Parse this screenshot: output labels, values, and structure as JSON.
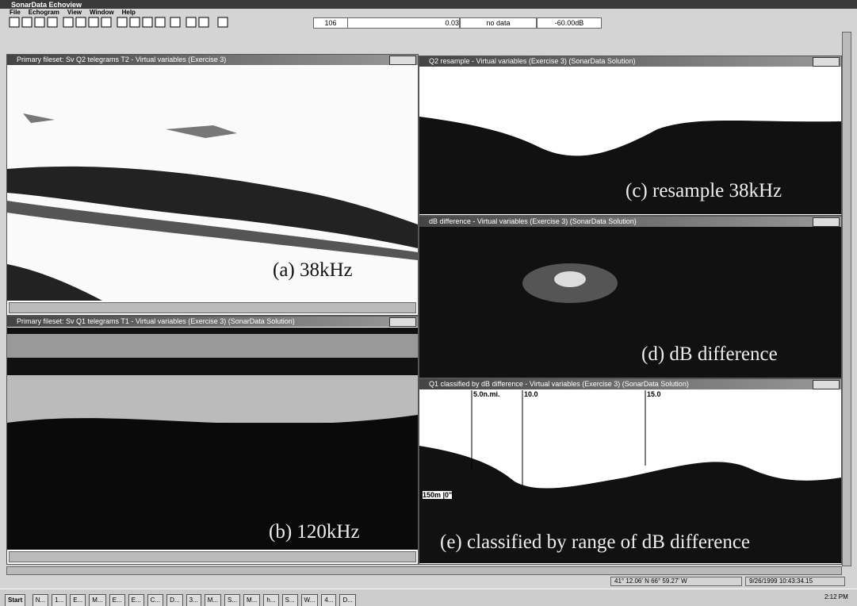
{
  "app": {
    "title": "SonarData Echoview",
    "menu": [
      "File",
      "Echogram",
      "View",
      "Window",
      "Help"
    ],
    "toolbar_fields": [
      "106",
      "0.03",
      "no data",
      "-60.00dB"
    ]
  },
  "windows": [
    {
      "title": "Primary fileset: Sv Q2 telegrams T2 - Virtual variables (Exercise 3)",
      "label": "(a) 38kHz"
    },
    {
      "title": "Primary fileset: Sv Q1 telegrams T1 - Virtual variables (Exercise 3) (SonarData Solution)",
      "label": "(b) 120kHz"
    },
    {
      "title": "Q2 resample - Virtual variables (Exercise 3) (SonarData Solution)",
      "label": "(c) resample 38kHz"
    },
    {
      "title": "dB difference - Virtual variables (Exercise 3) (SonarData Solution)",
      "label": "(d) dB difference"
    },
    {
      "title": "Q1 classified by dB difference - Virtual variables (Exercise 3) (SonarData Solution)",
      "label": "(e) classified by range of dB difference"
    }
  ],
  "echogram_e": {
    "markers": [
      "5.0n.mi.",
      "10.0",
      "15.0"
    ],
    "depth": "150m |0\""
  },
  "status": {
    "position": "41° 12.06' N 66° 59.27' W",
    "time": "9/26/1999 10:43:34.15"
  },
  "taskbar": {
    "start": "Start",
    "buttons": [
      "N...",
      "1...",
      "E...",
      "M...",
      "E...",
      "E...",
      "C...",
      "D...",
      "3...",
      "M...",
      "S...",
      "M...",
      "h...",
      "S...",
      "W...",
      "4...",
      "D..."
    ],
    "clock": "2:12 PM"
  }
}
